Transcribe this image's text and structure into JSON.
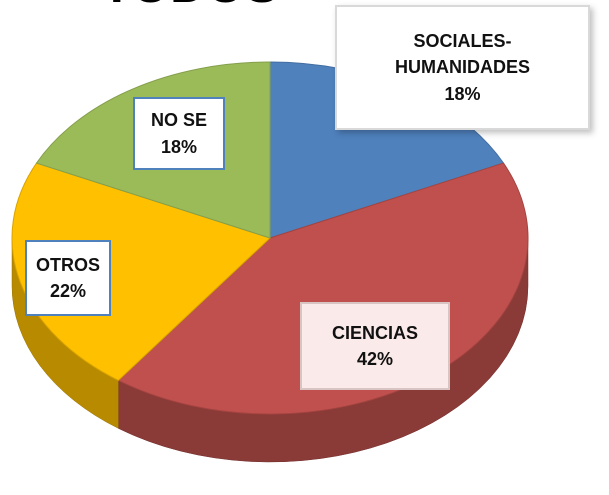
{
  "chart_data": {
    "type": "pie",
    "title": "TODOS",
    "categories": [
      "SOCIALES-HUMANIDADES",
      "CIENCIAS",
      "OTROS",
      "NO SE"
    ],
    "values": [
      18,
      42,
      22,
      18
    ],
    "value_labels": [
      "18%",
      "42%",
      "22%",
      "18%"
    ],
    "colors": [
      "#4f81bd",
      "#c0504d",
      "#ffc000",
      "#9bbb59"
    ]
  }
}
